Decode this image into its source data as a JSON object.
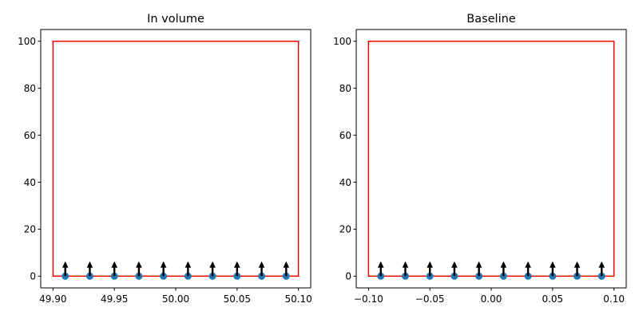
{
  "chart_data": [
    {
      "type": "scatter",
      "title": "In volume",
      "xlabel": "",
      "ylabel": "",
      "xlim": [
        49.89,
        50.11
      ],
      "ylim": [
        -5,
        105
      ],
      "xticks": [
        49.9,
        49.95,
        50.0,
        50.05,
        50.1
      ],
      "xtick_labels": [
        "49.90",
        "49.95",
        "50.00",
        "50.05",
        "50.10"
      ],
      "yticks": [
        0,
        20,
        40,
        60,
        80,
        100
      ],
      "ytick_labels": [
        "0",
        "20",
        "40",
        "60",
        "80",
        "100"
      ],
      "points": {
        "x": [
          49.91,
          49.93,
          49.95,
          49.97,
          49.99,
          50.01,
          50.03,
          50.05,
          50.07,
          50.09
        ],
        "y": [
          0,
          0,
          0,
          0,
          0,
          0,
          0,
          0,
          0,
          0
        ]
      },
      "arrows": {
        "dy": 6
      },
      "outline": {
        "x": [
          49.9,
          50.1
        ],
        "y": [
          0,
          100
        ]
      },
      "grid": false,
      "colors": {
        "points": "#1f77b4",
        "outline": "#ff0000",
        "arrows": "#000000"
      }
    },
    {
      "type": "scatter",
      "title": "Baseline",
      "xlabel": "",
      "ylabel": "",
      "xlim": [
        -0.11,
        0.11
      ],
      "ylim": [
        -5,
        105
      ],
      "xticks": [
        -0.1,
        -0.05,
        0.0,
        0.05,
        0.1
      ],
      "xtick_labels": [
        "−0.10",
        "−0.05",
        "0.00",
        "0.05",
        "0.10"
      ],
      "yticks": [
        0,
        20,
        40,
        60,
        80,
        100
      ],
      "ytick_labels": [
        "0",
        "20",
        "40",
        "60",
        "80",
        "100"
      ],
      "points": {
        "x": [
          -0.09,
          -0.07,
          -0.05,
          -0.03,
          -0.01,
          0.01,
          0.03,
          0.05,
          0.07,
          0.09
        ],
        "y": [
          0,
          0,
          0,
          0,
          0,
          0,
          0,
          0,
          0,
          0
        ]
      },
      "arrows": {
        "dy": 6
      },
      "outline": {
        "x": [
          -0.1,
          0.1
        ],
        "y": [
          0,
          100
        ]
      },
      "grid": false,
      "colors": {
        "points": "#1f77b4",
        "outline": "#ff0000",
        "arrows": "#000000"
      }
    }
  ]
}
